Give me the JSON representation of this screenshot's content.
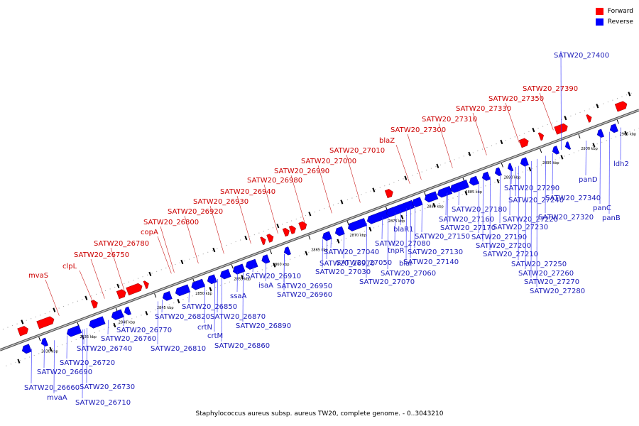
{
  "caption": "Staphylococcus aureus subsp. aureus TW20, complete genome. - 0..3043210",
  "legend": {
    "forward": {
      "label": "Forward",
      "color": "#ff0000"
    },
    "reverse": {
      "label": "Reverse",
      "color": "#0000ff"
    }
  },
  "colors": {
    "backbone": "#888888",
    "forward_label": "#cc0000",
    "reverse_label": "#1a1ab8",
    "line_forward": "#cc2222",
    "line_reverse": "#2a2aff"
  },
  "axis": {
    "unit": "kbp",
    "start_kbp": 2830,
    "end_kbp": 2905,
    "ticks": [
      2830,
      2835,
      2840,
      2845,
      2850,
      2855,
      2860,
      2865,
      2870,
      2875,
      2880,
      2885,
      2890,
      2895,
      2900,
      2905
    ]
  },
  "forward_labels": [
    "mvaS",
    "clpL",
    "SATW20_26750",
    "SATW20_26780",
    "copA",
    "SATW20_26800",
    "SATW20_26920",
    "SATW20_26930",
    "SATW20_26940",
    "SATW20_26980",
    "SATW20_26990",
    "SATW20_27000",
    "SATW20_27010",
    "blaZ",
    "SATW20_27300",
    "SATW20_27310",
    "SATW20_27330",
    "SATW20_27350",
    "SATW20_27390"
  ],
  "reverse_labels": [
    "SATW20_27400",
    "panD",
    "ldh2",
    "panC",
    "panB",
    "SATW20_27340",
    "SATW20_27320",
    "SATW20_27290",
    "SATW20_27240",
    "SATW20_27220",
    "SATW20_27230",
    "SATW20_27190",
    "SATW20_27200",
    "SATW20_27210",
    "SATW20_27250",
    "SATW20_27260",
    "SATW20_27270",
    "SATW20_27280",
    "SATW20_27180",
    "SATW20_27160",
    "SATW20_27170",
    "SATW20_27150",
    "SATW20_27130",
    "SATW20_27140",
    "blaR1",
    "tnpR",
    "blaI",
    "SATW20_27080",
    "SATW20_27050",
    "SATW20_27060",
    "SATW20_27070",
    "SATW20_27040",
    "SATW20_27030",
    "SATW20_26970",
    "SATW20_26950",
    "SATW20_26960",
    "SATW20_26910",
    "isaA",
    "ssaA",
    "SATW20_26850",
    "SATW20_26870",
    "SATW20_26890",
    "SATW20_26860",
    "SATW20_26820",
    "crtN",
    "crtM",
    "SATW20_26810",
    "SATW20_26770",
    "SATW20_26760",
    "SATW20_26740",
    "SATW20_26720",
    "SATW20_26730",
    "SATW20_26690",
    "SATW20_26660",
    "mvaA",
    "SATW20_26710"
  ]
}
